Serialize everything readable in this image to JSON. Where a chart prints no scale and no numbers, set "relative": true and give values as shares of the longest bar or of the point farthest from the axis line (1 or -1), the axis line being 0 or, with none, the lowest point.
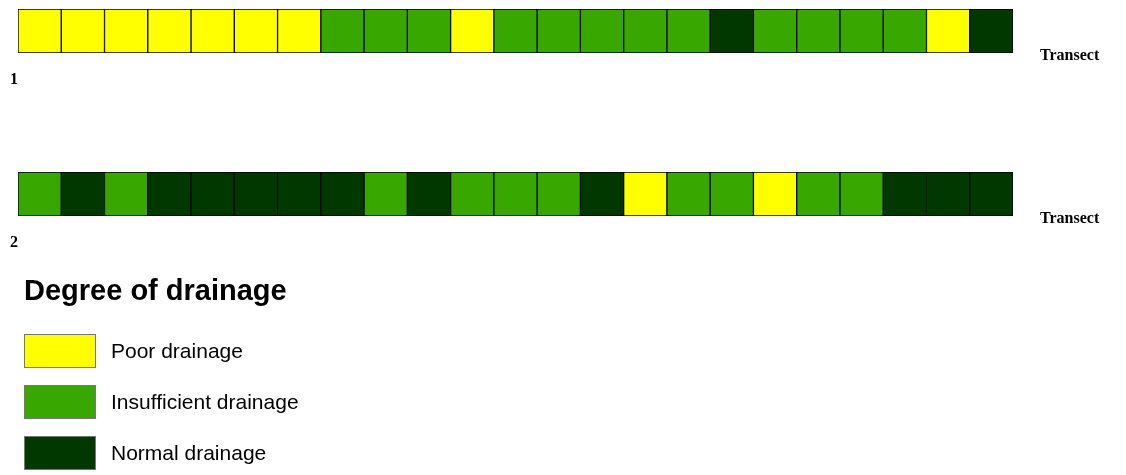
{
  "chart_data": [
    {
      "type": "bar",
      "relative": true,
      "categories": [
        null,
        null,
        null,
        null,
        null,
        null,
        null,
        null,
        null,
        null,
        null,
        null,
        null,
        null,
        null,
        null,
        null,
        null,
        null,
        null,
        null,
        null,
        null
      ],
      "annotations": [
        "Transect",
        "1"
      ],
      "values": [
        1,
        1,
        1,
        1,
        1,
        1,
        1,
        1,
        1,
        1,
        1,
        1,
        1,
        1,
        1,
        1,
        1,
        1,
        1,
        1,
        1,
        1,
        1
      ],
      "colors": [
        "#ffff00",
        "#ffff00",
        "#ffff00",
        "#ffff00",
        "#ffff00",
        "#ffff00",
        "#ffff00",
        "#38a800",
        "#38a800",
        "#38a800",
        "#ffff00",
        "#38a800",
        "#38a800",
        "#38a800",
        "#38a800",
        "#38a800",
        "#003800",
        "#38a800",
        "#38a800",
        "#38a800",
        "#38a800",
        "#ffff00",
        "#003800"
      ]
    },
    {
      "type": "bar",
      "relative": true,
      "categories": [
        null,
        null,
        null,
        null,
        null,
        null,
        null,
        null,
        null,
        null,
        null,
        null,
        null,
        null,
        null,
        null,
        null,
        null,
        null,
        null,
        null,
        null,
        null
      ],
      "annotations": [
        "Transect",
        "2",
        "Degree of drainage",
        "Poor drainage",
        "Insufficient drainage",
        "Normal drainage"
      ],
      "values": [
        1,
        1,
        1,
        1,
        1,
        1,
        1,
        1,
        1,
        1,
        1,
        1,
        1,
        1,
        1,
        1,
        1,
        1,
        1,
        1,
        1,
        1,
        1
      ],
      "colors": [
        "#38a800",
        "#003800",
        "#38a800",
        "#003800",
        "#003800",
        "#003800",
        "#003800",
        "#003800",
        "#38a800",
        "#003800",
        "#38a800",
        "#38a800",
        "#38a800",
        "#003800",
        "#ffff00",
        "#38a800",
        "#38a800",
        "#ffff00",
        "#38a800",
        "#38a800",
        "#003800",
        "#003800",
        "#003800"
      ]
    }
  ]
}
